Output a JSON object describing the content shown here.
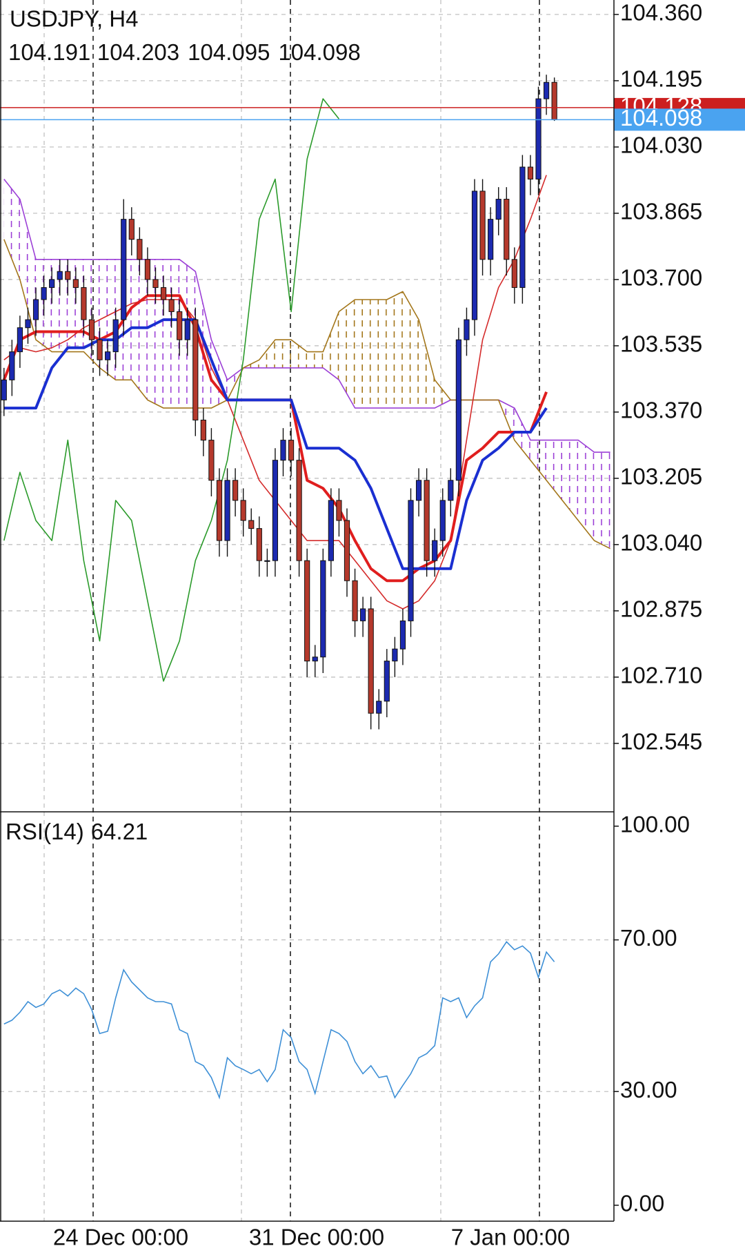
{
  "header": {
    "symbol": "USDJPY, H4"
  },
  "chart_data": [
    {
      "type": "candlestick",
      "open": [
        103.4,
        103.45,
        103.52,
        103.58,
        103.6,
        103.65,
        103.68,
        103.7,
        103.72,
        103.7,
        103.68,
        103.6,
        103.55,
        103.5,
        103.52,
        103.6,
        103.85,
        103.8,
        103.75,
        103.7,
        103.68,
        103.65,
        103.62,
        103.55,
        103.6,
        103.35,
        103.3,
        103.2,
        103.05,
        103.2,
        103.15,
        103.1,
        103.08,
        103.0,
        103.0,
        103.25,
        103.3,
        103.25,
        103.0,
        102.75,
        102.76,
        103.0,
        103.15,
        103.1,
        102.95,
        102.85,
        102.88,
        102.62,
        102.65,
        102.75,
        102.78,
        102.85,
        103.15,
        103.2,
        103.0,
        103.05,
        103.15,
        103.2,
        103.55,
        103.6,
        103.92,
        103.75,
        103.85,
        103.9,
        103.75,
        103.68,
        103.98,
        103.95,
        104.15,
        104.191
      ],
      "high": [
        103.48,
        103.55,
        103.61,
        103.63,
        103.68,
        103.71,
        103.73,
        103.75,
        103.75,
        103.73,
        103.71,
        103.63,
        103.58,
        103.55,
        103.63,
        103.9,
        103.88,
        103.83,
        103.78,
        103.73,
        103.71,
        103.68,
        103.65,
        103.63,
        103.63,
        103.38,
        103.33,
        103.23,
        103.23,
        103.23,
        103.18,
        103.13,
        103.11,
        103.03,
        103.28,
        103.33,
        103.33,
        103.28,
        103.03,
        102.79,
        103.03,
        103.18,
        103.18,
        103.13,
        102.98,
        102.91,
        102.91,
        102.68,
        102.78,
        102.81,
        102.88,
        103.18,
        103.23,
        103.23,
        103.08,
        103.18,
        103.23,
        103.58,
        103.63,
        103.95,
        103.95,
        103.88,
        103.93,
        103.93,
        103.78,
        104.01,
        104.01,
        104.18,
        104.21,
        104.203
      ],
      "low": [
        103.36,
        103.41,
        103.48,
        103.54,
        103.56,
        103.61,
        103.64,
        103.66,
        103.66,
        103.64,
        103.56,
        103.51,
        103.46,
        103.46,
        103.48,
        103.56,
        103.76,
        103.71,
        103.66,
        103.64,
        103.61,
        103.58,
        103.51,
        103.51,
        103.31,
        103.26,
        103.16,
        103.01,
        103.01,
        103.11,
        103.06,
        103.04,
        102.96,
        102.96,
        102.96,
        103.21,
        103.21,
        102.96,
        102.71,
        102.71,
        102.72,
        102.96,
        103.06,
        102.91,
        102.81,
        102.81,
        102.58,
        102.58,
        102.61,
        102.71,
        102.74,
        102.81,
        103.11,
        102.96,
        102.96,
        103.01,
        103.11,
        103.16,
        103.51,
        103.56,
        103.71,
        103.71,
        103.81,
        103.71,
        103.64,
        103.64,
        103.91,
        103.91,
        104.11,
        104.095
      ],
      "close": [
        103.45,
        103.52,
        103.58,
        103.6,
        103.65,
        103.68,
        103.7,
        103.72,
        103.7,
        103.68,
        103.6,
        103.55,
        103.5,
        103.52,
        103.6,
        103.85,
        103.8,
        103.75,
        103.7,
        103.68,
        103.65,
        103.62,
        103.55,
        103.6,
        103.35,
        103.3,
        103.2,
        103.05,
        103.2,
        103.15,
        103.1,
        103.08,
        103.0,
        103.0,
        103.25,
        103.3,
        103.25,
        103.0,
        102.75,
        102.76,
        103.0,
        103.15,
        103.1,
        102.95,
        102.85,
        102.88,
        102.62,
        102.65,
        102.75,
        102.78,
        102.85,
        103.15,
        103.2,
        103.0,
        103.05,
        103.15,
        103.2,
        103.55,
        103.6,
        103.92,
        103.75,
        103.85,
        103.9,
        103.75,
        103.68,
        103.98,
        103.95,
        104.15,
        104.191,
        104.098
      ],
      "bull_color": "#1c2ab0",
      "bear_color": "#b5392c",
      "ask": 104.128,
      "ask_color": "#cc1f1f",
      "bid_color": "#4aa3f0",
      "ylim": [
        102.378,
        104.396
      ],
      "yticks": [
        {
          "value": 104.36,
          "label": "104.360"
        },
        104.195,
        {
          "value": 104.03,
          "label": "104.030"
        },
        103.865,
        {
          "value": 103.7,
          "label": "103.700"
        },
        103.535,
        {
          "value": 103.37,
          "label": "103.370"
        },
        103.205,
        {
          "value": 103.04,
          "label": "103.040"
        },
        102.875,
        {
          "value": 102.71,
          "label": "102.710"
        },
        102.545
      ],
      "x_labels": [
        "24 Dec 00:00",
        "31 Dec 00:00",
        "7 Jan 00:00"
      ],
      "overlays": {
        "index": [
          0,
          2,
          4,
          6,
          8,
          10,
          12,
          14,
          16,
          18,
          20,
          22,
          24,
          26,
          28,
          30,
          32,
          34,
          36,
          38,
          40,
          42,
          44,
          46,
          48,
          50,
          52,
          54,
          56,
          58,
          60,
          62,
          64,
          66,
          68,
          70,
          72,
          74,
          76
        ],
        "spanB": {
          "color": "#9b3fd6",
          "values": [
            103.95,
            103.9,
            103.75,
            103.75,
            103.75,
            103.75,
            103.75,
            103.75,
            103.75,
            103.75,
            103.75,
            103.75,
            103.72,
            103.55,
            103.45,
            103.48,
            103.48,
            103.48,
            103.48,
            103.48,
            103.48,
            103.45,
            103.38,
            103.38,
            103.38,
            103.38,
            103.38,
            103.38,
            103.4,
            103.4,
            103.4,
            103.4,
            103.38,
            103.3,
            103.3,
            103.3,
            103.3,
            103.27,
            103.27
          ]
        },
        "spanA": {
          "color": "#a3761a",
          "values": [
            103.8,
            103.7,
            103.55,
            103.52,
            103.52,
            103.52,
            103.48,
            103.45,
            103.45,
            103.4,
            103.38,
            103.38,
            103.38,
            103.38,
            103.4,
            103.48,
            103.5,
            103.55,
            103.55,
            103.52,
            103.52,
            103.62,
            103.65,
            103.65,
            103.65,
            103.67,
            103.6,
            103.45,
            103.4,
            103.4,
            103.4,
            103.4,
            103.3,
            103.25,
            103.2,
            103.15,
            103.1,
            103.05,
            103.03
          ]
        },
        "ma": {
          "color": "#d42a2a",
          "values": [
            103.5,
            103.53,
            103.52,
            103.53,
            103.55,
            103.58,
            103.6,
            103.62,
            103.64,
            103.65,
            103.65,
            103.65,
            103.6,
            103.48,
            103.4,
            103.3,
            103.2,
            103.15,
            103.1,
            103.05,
            103.05,
            103.05,
            103.0,
            102.95,
            102.9,
            102.88,
            102.9,
            102.95,
            103.05,
            103.3,
            103.55,
            103.68,
            103.75,
            103.85,
            103.96,
            null,
            null,
            null,
            null
          ]
        },
        "chikou": {
          "color": "#2a9a2a",
          "values": [
            103.05,
            103.22,
            103.1,
            103.05,
            103.3,
            103.0,
            102.8,
            103.15,
            103.1,
            102.9,
            102.7,
            102.8,
            103.0,
            103.1,
            103.25,
            103.5,
            103.85,
            103.95,
            103.62,
            104.0,
            104.15,
            104.1,
            null,
            null,
            null,
            null,
            null,
            null,
            null,
            null,
            null,
            null,
            null,
            null,
            null,
            null,
            null,
            null,
            null
          ]
        },
        "tenkan": {
          "color": "#e01e1e",
          "values": [
            103.45,
            103.55,
            103.57,
            103.57,
            103.57,
            103.57,
            103.55,
            103.57,
            103.63,
            103.66,
            103.66,
            103.66,
            103.58,
            103.45,
            103.4,
            103.4,
            103.4,
            103.4,
            103.4,
            103.2,
            103.18,
            103.13,
            103.05,
            102.98,
            102.95,
            102.95,
            102.98,
            103.0,
            103.05,
            103.25,
            103.28,
            103.32,
            103.32,
            103.32,
            103.42,
            null,
            null,
            null,
            null
          ]
        },
        "kijun": {
          "color": "#1a2fd1",
          "values": [
            103.38,
            103.38,
            103.38,
            103.48,
            103.53,
            103.53,
            103.55,
            103.55,
            103.58,
            103.58,
            103.6,
            103.6,
            103.6,
            103.5,
            103.4,
            103.4,
            103.4,
            103.4,
            103.4,
            103.28,
            103.28,
            103.28,
            103.25,
            103.18,
            103.08,
            102.98,
            102.98,
            102.98,
            102.98,
            103.15,
            103.25,
            103.28,
            103.32,
            103.32,
            103.38,
            null,
            null,
            null,
            null
          ]
        }
      }
    },
    {
      "type": "line",
      "title": "RSI(14)",
      "color": "#3d8fd6",
      "values": [
        47.8,
        48.8,
        50.9,
        53.7,
        52.2,
        53.1,
        55.8,
        56.8,
        55.2,
        57.3,
        55.8,
        51.6,
        45.3,
        45.9,
        54.7,
        62.1,
        58.9,
        56.8,
        54.7,
        53.7,
        53.7,
        53.1,
        46.3,
        45.3,
        37.9,
        36.8,
        33.7,
        28.4,
        38.9,
        36.8,
        35.8,
        34.7,
        35.8,
        32.6,
        35.8,
        46.3,
        44.2,
        37.9,
        35.8,
        29.5,
        37.9,
        46.3,
        45.3,
        43.2,
        37.9,
        34.7,
        36.8,
        33.7,
        34.1,
        28.4,
        31.6,
        34.7,
        38.9,
        40,
        42.1,
        54.7,
        53.7,
        54.7,
        49.5,
        52.6,
        54.7,
        64.2,
        66.3,
        69.5,
        67.4,
        68.4,
        66.5,
        60.1,
        66.8,
        64.21
      ],
      "ylim": [
        -4.2,
        103.6
      ],
      "yticks": [
        {
          "value": 100,
          "label": "100.00"
        },
        {
          "value": 70,
          "label": "70.00"
        },
        {
          "value": 30,
          "label": "30.00"
        },
        {
          "value": 0,
          "label": "0.00"
        }
      ]
    }
  ]
}
